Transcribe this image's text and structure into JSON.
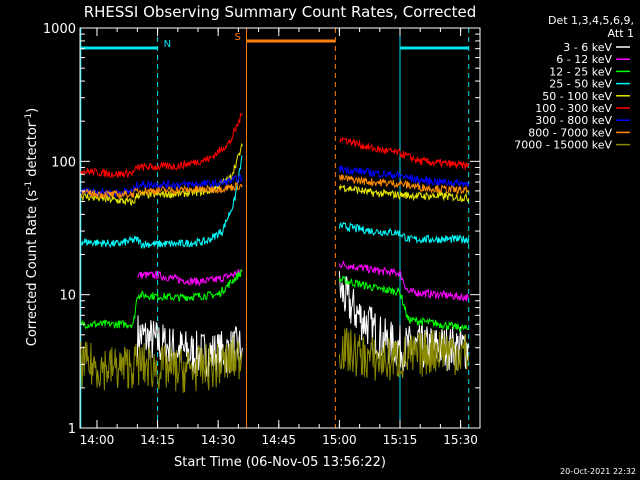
{
  "chart_data": {
    "type": "line",
    "title": "RHESSI Observing Summary Count Rates, Corrected",
    "xlabel": "Start Time (06-Nov-05 13:56:22)",
    "ylabel": "Corrected Count Rate (s⁻¹ detector⁻¹)",
    "ylabel_main": "Corrected Count Rate (s",
    "ylabel_sup1": "-1",
    "ylabel_mid": " detector",
    "ylabel_sup2": "-1",
    "ylabel_end": ")",
    "y_scale": "log",
    "ylim": [
      1,
      1000
    ],
    "xlim_minutes": [
      13.93,
      15.58
    ],
    "x_ticks": [
      "14:00",
      "14:15",
      "14:30",
      "14:45",
      "15:00",
      "15:15",
      "15:30"
    ],
    "y_ticks": [
      "1",
      "10",
      "100",
      "1000"
    ],
    "legend_header": [
      "Det 1,3,4,5,6,9,",
      "Att 1"
    ],
    "legend_position": "right",
    "timestamp": "20-Oct-2021 22:32",
    "flags": [
      {
        "label": "N",
        "color": "#00e5ee",
        "intervals": [
          [
            "13:56",
            "14:15"
          ],
          [
            "15:15",
            "15:32"
          ]
        ]
      },
      {
        "label": "S",
        "color": "#ff7f0e",
        "intervals": [
          [
            "14:37",
            "14:59"
          ]
        ]
      }
    ],
    "data_gap": [
      "14:37",
      "14:59"
    ],
    "series": [
      {
        "name": "3 - 6 keV",
        "color": "#ffffff",
        "points": [
          [
            "14:10",
            5.0
          ],
          [
            "14:14",
            4.5
          ],
          [
            "14:18",
            4.0
          ],
          [
            "14:24",
            3.6
          ],
          [
            "14:30",
            3.6
          ],
          [
            "14:36",
            4.0
          ],
          [
            "15:00",
            11.0
          ],
          [
            "15:03",
            8.0
          ],
          [
            "15:07",
            6.0
          ],
          [
            "15:11",
            4.5
          ],
          [
            "15:15",
            4.0
          ],
          [
            "15:20",
            4.0
          ],
          [
            "15:25",
            4.0
          ],
          [
            "15:32",
            4.0
          ]
        ]
      },
      {
        "name": "6 - 12 keV",
        "color": "#ff00ff",
        "points": [
          [
            "14:10",
            14.0
          ],
          [
            "14:15",
            14.0
          ],
          [
            "14:20",
            13.0
          ],
          [
            "14:25",
            12.5
          ],
          [
            "14:30",
            13.0
          ],
          [
            "14:36",
            15.0
          ],
          [
            "15:00",
            17.0
          ],
          [
            "15:05",
            16.0
          ],
          [
            "15:10",
            15.0
          ],
          [
            "15:15",
            14.5
          ],
          [
            "15:17",
            10.5
          ],
          [
            "15:25",
            10.0
          ],
          [
            "15:32",
            9.5
          ]
        ]
      },
      {
        "name": "12 - 25 keV",
        "color": "#00ff00",
        "points": [
          [
            "13:56",
            6.0
          ],
          [
            "14:05",
            6.0
          ],
          [
            "14:09",
            6.0
          ],
          [
            "14:10",
            10.0
          ],
          [
            "14:20",
            9.5
          ],
          [
            "14:30",
            10.0
          ],
          [
            "14:36",
            15.0
          ],
          [
            "15:00",
            13.0
          ],
          [
            "15:05",
            12.0
          ],
          [
            "15:10",
            11.0
          ],
          [
            "15:15",
            10.5
          ],
          [
            "15:17",
            6.5
          ],
          [
            "15:25",
            6.0
          ],
          [
            "15:32",
            5.5
          ]
        ]
      },
      {
        "name": "25 - 50 keV",
        "color": "#00ffff",
        "points": [
          [
            "13:56",
            25.0
          ],
          [
            "14:05",
            24.0
          ],
          [
            "14:10",
            26.0
          ],
          [
            "14:11",
            24.0
          ],
          [
            "14:20",
            24.0
          ],
          [
            "14:27",
            25.0
          ],
          [
            "14:31",
            30.0
          ],
          [
            "14:34",
            50.0
          ],
          [
            "14:36",
            110.0
          ],
          [
            "15:00",
            33.0
          ],
          [
            "15:08",
            30.0
          ],
          [
            "15:15",
            29.0
          ],
          [
            "15:17",
            26.0
          ],
          [
            "15:25",
            26.0
          ],
          [
            "15:32",
            26.0
          ]
        ]
      },
      {
        "name": "50 - 100 keV",
        "color": "#e8e800",
        "points": [
          [
            "13:56",
            55.0
          ],
          [
            "14:05",
            51.0
          ],
          [
            "14:09",
            49.0
          ],
          [
            "14:10",
            56.0
          ],
          [
            "14:20",
            57.0
          ],
          [
            "14:28",
            60.0
          ],
          [
            "14:33",
            75.0
          ],
          [
            "14:36",
            130.0
          ],
          [
            "15:00",
            65.0
          ],
          [
            "15:08",
            58.0
          ],
          [
            "15:15",
            56.0
          ],
          [
            "15:20",
            55.0
          ],
          [
            "15:25",
            55.0
          ],
          [
            "15:32",
            53.0
          ]
        ]
      },
      {
        "name": "100 - 300 keV",
        "color": "#ff0000",
        "points": [
          [
            "13:56",
            85.0
          ],
          [
            "14:05",
            80.0
          ],
          [
            "14:09",
            82.0
          ],
          [
            "14:10",
            90.0
          ],
          [
            "14:20",
            92.0
          ],
          [
            "14:28",
            105.0
          ],
          [
            "14:33",
            140.0
          ],
          [
            "14:36",
            230.0
          ],
          [
            "15:00",
            150.0
          ],
          [
            "15:08",
            125.0
          ],
          [
            "15:15",
            115.0
          ],
          [
            "15:20",
            100.0
          ],
          [
            "15:25",
            97.0
          ],
          [
            "15:32",
            92.0
          ]
        ]
      },
      {
        "name": "300 - 800 keV",
        "color": "#0000ff",
        "points": [
          [
            "13:56",
            60.0
          ],
          [
            "14:05",
            58.0
          ],
          [
            "14:09",
            60.0
          ],
          [
            "14:10",
            67.0
          ],
          [
            "14:20",
            67.0
          ],
          [
            "14:30",
            68.0
          ],
          [
            "14:36",
            75.0
          ],
          [
            "15:00",
            88.0
          ],
          [
            "15:08",
            82.0
          ],
          [
            "15:15",
            78.0
          ],
          [
            "15:20",
            72.0
          ],
          [
            "15:25",
            70.0
          ],
          [
            "15:32",
            68.0
          ]
        ]
      },
      {
        "name": "800 - 7000 keV",
        "color": "#ff8c00",
        "points": [
          [
            "13:56",
            58.0
          ],
          [
            "14:05",
            56.0
          ],
          [
            "14:09",
            57.0
          ],
          [
            "14:10",
            60.0
          ],
          [
            "14:20",
            61.0
          ],
          [
            "14:30",
            62.0
          ],
          [
            "14:36",
            66.0
          ],
          [
            "15:00",
            75.0
          ],
          [
            "15:08",
            70.0
          ],
          [
            "15:15",
            68.0
          ],
          [
            "15:20",
            64.0
          ],
          [
            "15:25",
            62.0
          ],
          [
            "15:32",
            60.0
          ]
        ]
      },
      {
        "name": "7000 - 15000 keV",
        "color": "#8b8b00",
        "points": [
          [
            "13:56",
            3.0
          ],
          [
            "14:05",
            2.8
          ],
          [
            "14:10",
            3.0
          ],
          [
            "14:20",
            2.7
          ],
          [
            "14:30",
            2.9
          ],
          [
            "14:36",
            3.5
          ],
          [
            "15:00",
            4.0
          ],
          [
            "15:05",
            3.5
          ],
          [
            "15:10",
            3.2
          ],
          [
            "15:15",
            3.3
          ],
          [
            "15:20",
            3.5
          ],
          [
            "15:25",
            4.0
          ],
          [
            "15:32",
            3.5
          ]
        ]
      }
    ]
  }
}
